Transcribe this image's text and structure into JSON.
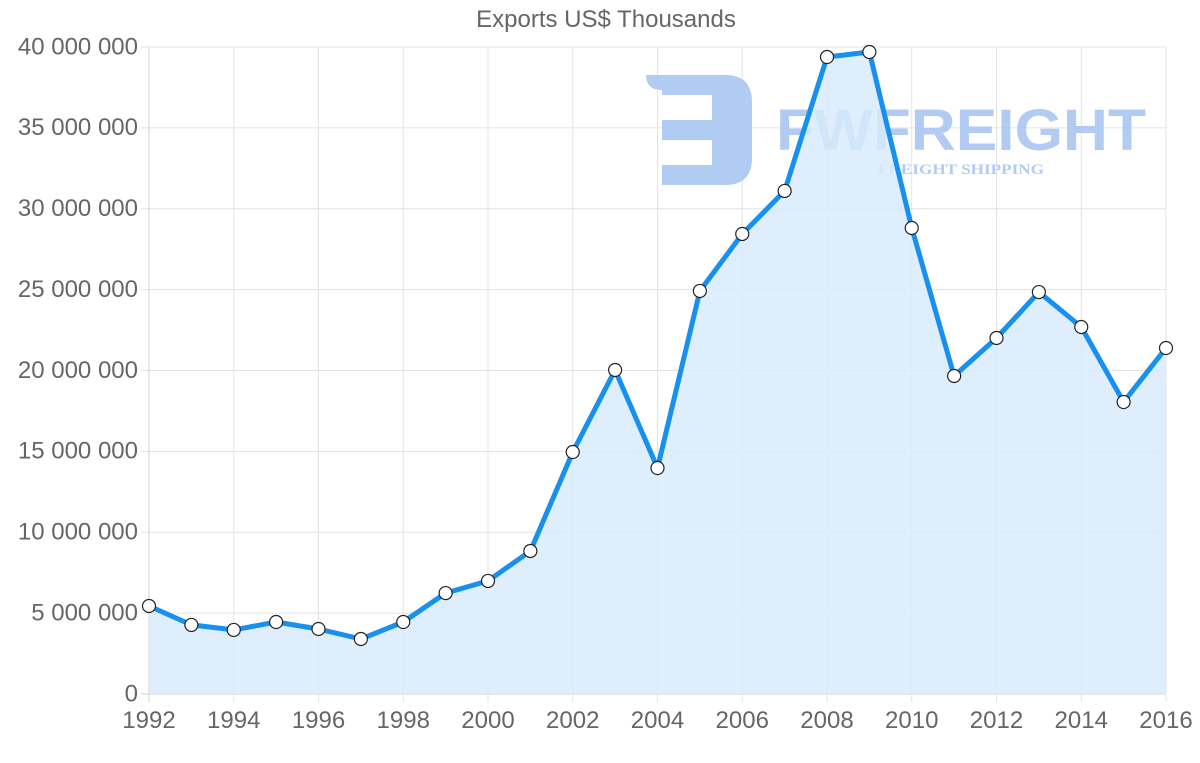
{
  "chart_data": {
    "type": "line",
    "title": "Exports US$ Thousands",
    "xlabel": "",
    "ylabel": "",
    "ylim": [
      0,
      40000000
    ],
    "xlim": [
      1992,
      2016
    ],
    "grid": true,
    "legend": null,
    "fill": true,
    "y_ticks": [
      "0",
      "5 000 000",
      "10 000 000",
      "15 000 000",
      "20 000 000",
      "25 000 000",
      "30 000 000",
      "35 000 000",
      "40 000 000"
    ],
    "y_tick_values": [
      0,
      5000000,
      10000000,
      15000000,
      20000000,
      25000000,
      30000000,
      35000000,
      40000000
    ],
    "x_ticks": [
      "1992",
      "1994",
      "1996",
      "1998",
      "2000",
      "2002",
      "2004",
      "2006",
      "2008",
      "2010",
      "2012",
      "2014",
      "2016"
    ],
    "x": [
      1992,
      1993,
      1994,
      1995,
      1996,
      1997,
      1998,
      1999,
      2000,
      2001,
      2002,
      2003,
      2004,
      2005,
      2006,
      2007,
      2008,
      2009,
      2010,
      2011,
      2012,
      2013,
      2014,
      2015,
      2016
    ],
    "series": [
      {
        "name": "Exports US$ Thousands",
        "color": "#1890f0",
        "fill_color": "#d8ebfc",
        "values": [
          5440000,
          4270000,
          3960000,
          4450000,
          4020000,
          3400000,
          4450000,
          6240000,
          6990000,
          8840000,
          14960000,
          20030000,
          13970000,
          24920000,
          28440000,
          31100000,
          39380000,
          39690000,
          28810000,
          19660000,
          22010000,
          24850000,
          22690000,
          18050000,
          21390000
        ]
      }
    ]
  },
  "watermark": {
    "brand": "FWFREIGHT",
    "tagline": "FREIGHT SHIPPING",
    "color": "#a9c6f2"
  }
}
